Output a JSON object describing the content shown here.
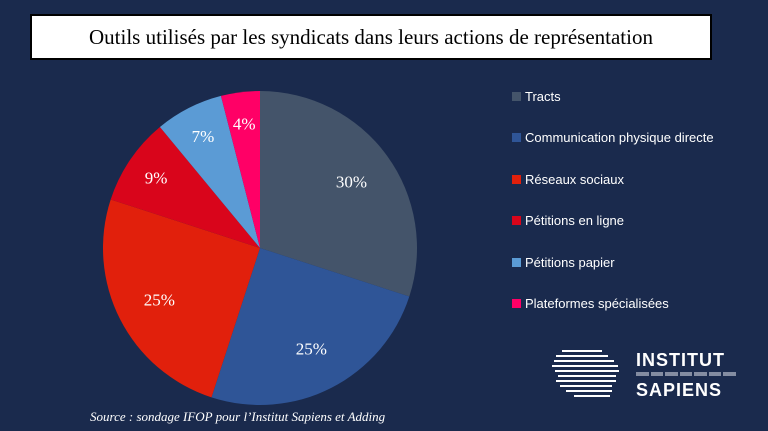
{
  "title": "Outils utilisés par les syndicats dans leurs actions de représentation",
  "source": "Source : sondage IFOP pour l’Institut Sapiens et Adding",
  "logo": {
    "line1": "INSTITUT",
    "line2": "SAPIENS"
  },
  "colors": {
    "background": "#1a2a4d",
    "text": "#ffffff"
  },
  "chart_data": {
    "type": "pie",
    "title": "Outils utilisés par les syndicats dans leurs actions de représentation",
    "legend_position": "right",
    "slices": [
      {
        "label": "Tracts",
        "value": 30,
        "display": "30%",
        "color": "#44546a"
      },
      {
        "label": "Communication physique directe",
        "value": 25,
        "display": "25%",
        "color": "#2f5597"
      },
      {
        "label": "Réseaux sociaux",
        "value": 25,
        "display": "25%",
        "color": "#e1200c"
      },
      {
        "label": "Pétitions en ligne",
        "value": 9,
        "display": "9%",
        "color": "#d9051b"
      },
      {
        "label": "Pétitions papier",
        "value": 7,
        "display": "7%",
        "color": "#5b9bd5"
      },
      {
        "label": "Plateformes spécialisées",
        "value": 4,
        "display": "4%",
        "color": "#ff0066"
      }
    ]
  }
}
